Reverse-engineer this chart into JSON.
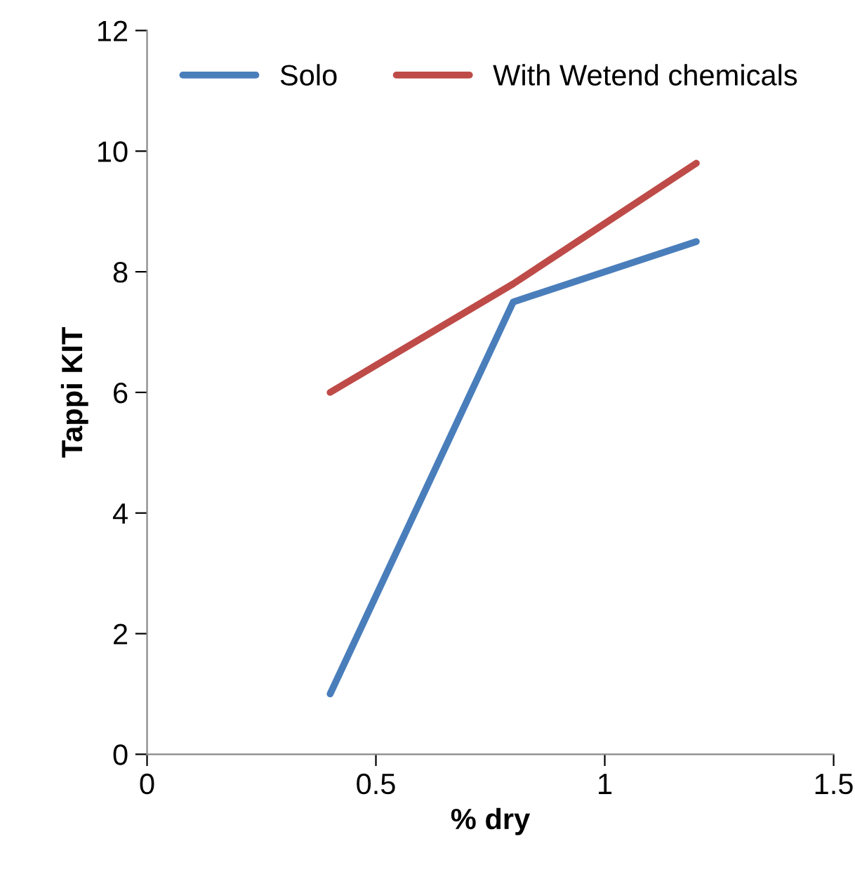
{
  "chart_data": {
    "type": "line",
    "xlabel": "% dry",
    "ylabel": "Tappi KIT",
    "x": [
      0.4,
      0.8,
      1.2
    ],
    "series": [
      {
        "name": "Solo",
        "color": "#4a7ebb",
        "values": [
          1.0,
          7.5,
          8.5
        ]
      },
      {
        "name": "With Wetend chemicals",
        "color": "#be4b48",
        "values": [
          6.0,
          7.8,
          9.8
        ]
      }
    ],
    "xlim": [
      0,
      1.5
    ],
    "xticks": [
      0,
      0.5,
      1,
      1.5
    ],
    "ylim": [
      0,
      12
    ],
    "yticks": [
      0,
      2,
      4,
      6,
      8,
      10,
      12
    ],
    "grid": false,
    "legend": "top",
    "marker": "none",
    "line_style": "solid"
  }
}
